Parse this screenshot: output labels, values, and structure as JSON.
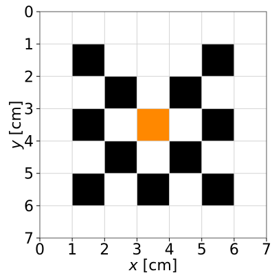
{
  "chart_data": {
    "type": "heatmap",
    "title": "",
    "xlabel": "x [cm]",
    "ylabel": "y [cm]",
    "xlabel_var": "x",
    "xlabel_unit": " [cm]",
    "ylabel_var": "y",
    "ylabel_unit": " [cm]",
    "xlim": [
      0,
      7
    ],
    "ylim": [
      7,
      0
    ],
    "y_inverted": true,
    "grid": true,
    "x_ticks": [
      0,
      1,
      2,
      3,
      4,
      5,
      6,
      7
    ],
    "y_ticks": [
      0,
      1,
      2,
      3,
      4,
      5,
      6,
      7
    ],
    "colors": {
      "filled": "#000000",
      "highlight": "#ff8800",
      "empty": "#ffffff",
      "grid": "#d3d3d3"
    },
    "cells": [
      {
        "x": 1,
        "y": 1,
        "value": 1
      },
      {
        "x": 5,
        "y": 1,
        "value": 1
      },
      {
        "x": 2,
        "y": 2,
        "value": 1
      },
      {
        "x": 4,
        "y": 2,
        "value": 1
      },
      {
        "x": 1,
        "y": 3,
        "value": 1
      },
      {
        "x": 3,
        "y": 3,
        "value": 2
      },
      {
        "x": 5,
        "y": 3,
        "value": 1
      },
      {
        "x": 2,
        "y": 4,
        "value": 1
      },
      {
        "x": 4,
        "y": 4,
        "value": 1
      },
      {
        "x": 1,
        "y": 5,
        "value": 1
      },
      {
        "x": 3,
        "y": 5,
        "value": 1
      },
      {
        "x": 5,
        "y": 5,
        "value": 1
      }
    ]
  }
}
